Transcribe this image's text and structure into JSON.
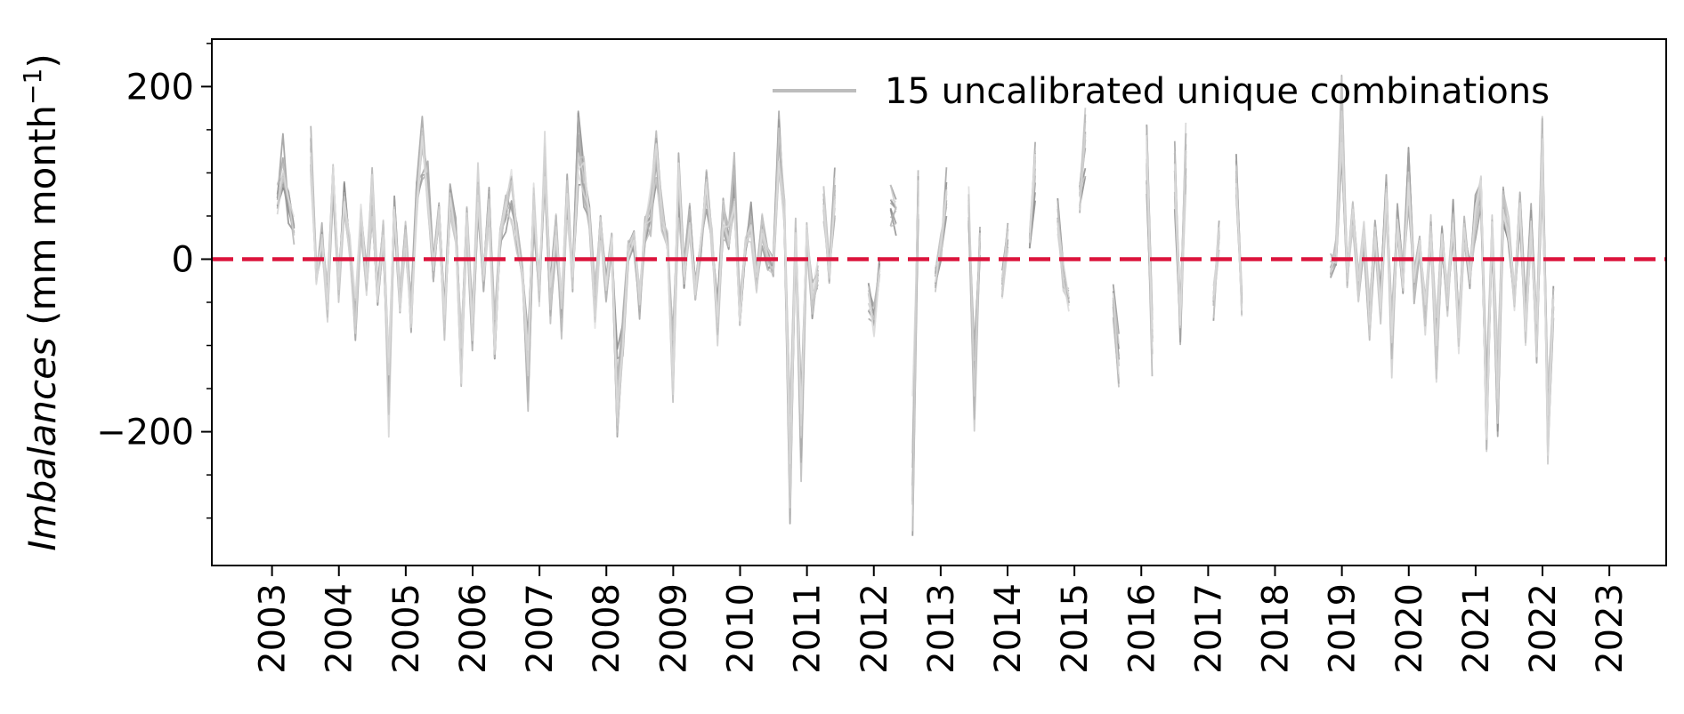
{
  "chart_data": {
    "type": "line",
    "title": "",
    "ylabel_italic": "Imbalances",
    "ylabel_unit_prefix": " (mm month",
    "ylabel_unit_exp": "−1",
    "ylabel_unit_suffix": ")",
    "xlabel": "",
    "xlim": [
      2002.1,
      2023.85
    ],
    "ylim": [
      -355,
      255
    ],
    "yticks": [
      {
        "value": -200,
        "label": "−200"
      },
      {
        "value": 0,
        "label": "0"
      },
      {
        "value": 200,
        "label": "200"
      }
    ],
    "yminor": [
      -300,
      -250,
      -150,
      -100,
      -50,
      50,
      100,
      150,
      250
    ],
    "xticks": [
      {
        "value": 2003,
        "label": "2003"
      },
      {
        "value": 2004,
        "label": "2004"
      },
      {
        "value": 2005,
        "label": "2005"
      },
      {
        "value": 2006,
        "label": "2006"
      },
      {
        "value": 2007,
        "label": "2007"
      },
      {
        "value": 2008,
        "label": "2008"
      },
      {
        "value": 2009,
        "label": "2009"
      },
      {
        "value": 2010,
        "label": "2010"
      },
      {
        "value": 2011,
        "label": "2011"
      },
      {
        "value": 2012,
        "label": "2012"
      },
      {
        "value": 2013,
        "label": "2013"
      },
      {
        "value": 2014,
        "label": "2014"
      },
      {
        "value": 2015,
        "label": "2015"
      },
      {
        "value": 2016,
        "label": "2016"
      },
      {
        "value": 2017,
        "label": "2017"
      },
      {
        "value": 2018,
        "label": "2018"
      },
      {
        "value": 2019,
        "label": "2019"
      },
      {
        "value": 2020,
        "label": "2020"
      },
      {
        "value": 2021,
        "label": "2021"
      },
      {
        "value": 2022,
        "label": "2022"
      },
      {
        "value": 2023,
        "label": "2023"
      }
    ],
    "reference_line": {
      "y": 0,
      "color": "#dc143c",
      "style": "dashed"
    },
    "legend": {
      "label": "15 uncalibrated unique combinations",
      "color": "#bdbdbd",
      "placement": "top-right"
    },
    "grid": false,
    "series_count": 15,
    "series_color": "#808080",
    "segments": [
      {
        "start": 2003.08,
        "values": [
          90,
          130,
          80,
          40
        ]
      },
      {
        "start": 2003.58,
        "values": [
          150,
          -20,
          30,
          -60,
          120,
          -40,
          80,
          20,
          -80,
          60,
          -30,
          90,
          -50,
          40,
          -200,
          70,
          -60,
          30,
          -80,
          90,
          160,
          100,
          -20,
          60,
          -90,
          80,
          40,
          -140,
          60,
          -100,
          100,
          -30,
          80,
          -120,
          40,
          70,
          90,
          30,
          -20,
          -160,
          80,
          -40,
          150,
          -60,
          40,
          -80,
          90,
          -30,
          170,
          110,
          60,
          -70,
          40,
          -40,
          20,
          -210,
          -100,
          10,
          30,
          -60,
          40,
          70,
          140,
          60,
          30,
          -160,
          110,
          -20,
          50,
          -40,
          20,
          100,
          30,
          -90,
          60,
          30,
          110,
          -80,
          20,
          50,
          -30,
          40,
          0,
          -10,
          150,
          60,
          -300,
          40,
          -250,
          40,
          -60,
          -20
        ]
      },
      {
        "start": 2011.25,
        "values": [
          90,
          -20,
          100
        ]
      },
      {
        "start": 2011.92,
        "values": [
          -60,
          -80,
          -10
        ]
      },
      {
        "start": 2012.25,
        "values": [
          80,
          60
        ]
      },
      {
        "start": 2012.58,
        "values": [
          -300,
          100
        ]
      },
      {
        "start": 2012.92,
        "values": [
          -30,
          20,
          90
        ]
      },
      {
        "start": 2013.42,
        "values": [
          80,
          -180,
          30
        ]
      },
      {
        "start": 2013.92,
        "values": [
          -40,
          30
        ]
      },
      {
        "start": 2014.33,
        "values": [
          20,
          130
        ]
      },
      {
        "start": 2014.75,
        "values": [
          60,
          -30,
          -50
        ]
      },
      {
        "start": 2015.08,
        "values": [
          90,
          170
        ]
      },
      {
        "start": 2015.58,
        "values": [
          -60,
          -140
        ]
      },
      {
        "start": 2016.08,
        "values": [
          150,
          -120
        ]
      },
      {
        "start": 2016.5,
        "values": [
          130,
          -90,
          140
        ]
      },
      {
        "start": 2017.08,
        "values": [
          -60,
          30
        ]
      },
      {
        "start": 2017.42,
        "values": [
          110,
          -60
        ]
      },
      {
        "start": 2018.83,
        "values": [
          -10,
          10,
          210,
          -20,
          60,
          -40,
          30,
          -90,
          40,
          -60,
          90,
          -120,
          60,
          -30,
          120,
          -40,
          20,
          -80,
          50,
          -140,
          30,
          -60,
          60,
          -110,
          40,
          -20,
          60,
          100,
          -230,
          50,
          -200,
          80,
          40,
          -60,
          70,
          -100,
          50,
          -120,
          160,
          -230,
          -60
        ]
      }
    ]
  }
}
